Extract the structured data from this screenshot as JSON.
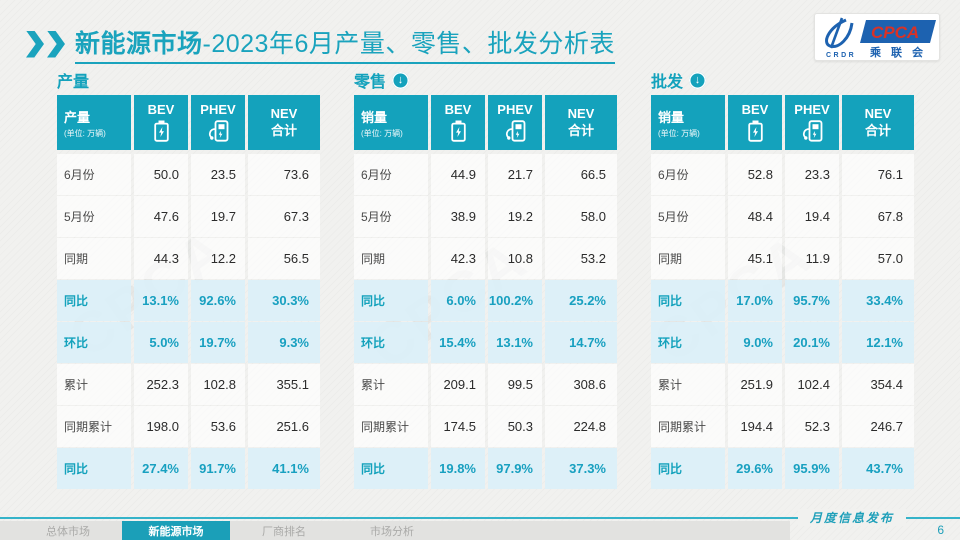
{
  "title": {
    "highlight": "新能源市场",
    "rest": "-2023年6月产量、零售、批发分析表"
  },
  "logo": {
    "icon_text": "CRDR",
    "brand": "CPCA",
    "brand_sub": "乘联会"
  },
  "watermark": "CPCA",
  "colors": {
    "teal": "#14a2bc",
    "title_teal": "#1aa3bd",
    "highlight_bg": "#ddf0f8",
    "footer_line": "#35b3c9",
    "active_tab": "#1b9fb8"
  },
  "column_icons": {
    "bev": "battery-icon",
    "phev": "charging-station-icon"
  },
  "tables": [
    {
      "section": "产量",
      "has_arrow": false,
      "header": {
        "label": "产量",
        "unit": "(单位: 万辆)",
        "col_bev": "BEV",
        "col_phev": "PHEV",
        "col_nev_line1": "NEV",
        "col_nev_line2": "合计"
      },
      "rows": [
        {
          "label": "6月份",
          "bev": "50.0",
          "phev": "23.5",
          "nev": "73.6",
          "highlight": false
        },
        {
          "label": "5月份",
          "bev": "47.6",
          "phev": "19.7",
          "nev": "67.3",
          "highlight": false
        },
        {
          "label": "同期",
          "bev": "44.3",
          "phev": "12.2",
          "nev": "56.5",
          "highlight": false
        },
        {
          "label": "同比",
          "bev": "13.1%",
          "phev": "92.6%",
          "nev": "30.3%",
          "highlight": true
        },
        {
          "label": "环比",
          "bev": "5.0%",
          "phev": "19.7%",
          "nev": "9.3%",
          "highlight": true
        },
        {
          "label": "累计",
          "bev": "252.3",
          "phev": "102.8",
          "nev": "355.1",
          "highlight": false
        },
        {
          "label": "同期累计",
          "bev": "198.0",
          "phev": "53.6",
          "nev": "251.6",
          "highlight": false
        },
        {
          "label": "同比",
          "bev": "27.4%",
          "phev": "91.7%",
          "nev": "41.1%",
          "highlight": true
        }
      ]
    },
    {
      "section": "零售",
      "has_arrow": true,
      "header": {
        "label": "销量",
        "unit": "(单位: 万辆)",
        "col_bev": "BEV",
        "col_phev": "PHEV",
        "col_nev_line1": "NEV",
        "col_nev_line2": "合计"
      },
      "rows": [
        {
          "label": "6月份",
          "bev": "44.9",
          "phev": "21.7",
          "nev": "66.5",
          "highlight": false
        },
        {
          "label": "5月份",
          "bev": "38.9",
          "phev": "19.2",
          "nev": "58.0",
          "highlight": false
        },
        {
          "label": "同期",
          "bev": "42.3",
          "phev": "10.8",
          "nev": "53.2",
          "highlight": false
        },
        {
          "label": "同比",
          "bev": "6.0%",
          "phev": "100.2%",
          "nev": "25.2%",
          "highlight": true
        },
        {
          "label": "环比",
          "bev": "15.4%",
          "phev": "13.1%",
          "nev": "14.7%",
          "highlight": true
        },
        {
          "label": "累计",
          "bev": "209.1",
          "phev": "99.5",
          "nev": "308.6",
          "highlight": false
        },
        {
          "label": "同期累计",
          "bev": "174.5",
          "phev": "50.3",
          "nev": "224.8",
          "highlight": false
        },
        {
          "label": "同比",
          "bev": "19.8%",
          "phev": "97.9%",
          "nev": "37.3%",
          "highlight": true
        }
      ]
    },
    {
      "section": "批发",
      "has_arrow": true,
      "header": {
        "label": "销量",
        "unit": "(单位: 万辆)",
        "col_bev": "BEV",
        "col_phev": "PHEV",
        "col_nev_line1": "NEV",
        "col_nev_line2": "合计"
      },
      "rows": [
        {
          "label": "6月份",
          "bev": "52.8",
          "phev": "23.3",
          "nev": "76.1",
          "highlight": false
        },
        {
          "label": "5月份",
          "bev": "48.4",
          "phev": "19.4",
          "nev": "67.8",
          "highlight": false
        },
        {
          "label": "同期",
          "bev": "45.1",
          "phev": "11.9",
          "nev": "57.0",
          "highlight": false
        },
        {
          "label": "同比",
          "bev": "17.0%",
          "phev": "95.7%",
          "nev": "33.4%",
          "highlight": true
        },
        {
          "label": "环比",
          "bev": "9.0%",
          "phev": "20.1%",
          "nev": "12.1%",
          "highlight": true
        },
        {
          "label": "累计",
          "bev": "251.9",
          "phev": "102.4",
          "nev": "354.4",
          "highlight": false
        },
        {
          "label": "同期累计",
          "bev": "194.4",
          "phev": "52.3",
          "nev": "246.7",
          "highlight": false
        },
        {
          "label": "同比",
          "bev": "29.6%",
          "phev": "95.9%",
          "nev": "43.7%",
          "highlight": true
        }
      ]
    }
  ],
  "footer": {
    "note": "月度信息发布",
    "page": "6",
    "tabs": [
      {
        "label": "总体市场",
        "active": false
      },
      {
        "label": "新能源市场",
        "active": true
      },
      {
        "label": "厂商排名",
        "active": false
      },
      {
        "label": "市场分析",
        "active": false
      }
    ]
  }
}
